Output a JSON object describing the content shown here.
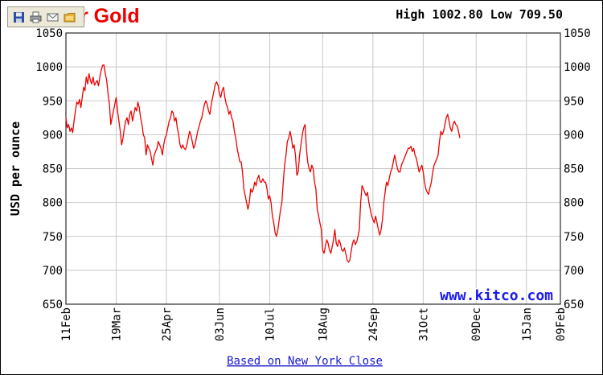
{
  "chart_data": {
    "type": "line",
    "title_visible": "r Gold",
    "high_low_text": "High 1002.80 Low 709.50",
    "ylabel": "USD per ounce",
    "footer": "Based on New York Close",
    "watermark": "www.kitco.com",
    "ylim": [
      650,
      1050
    ],
    "yticks": [
      650,
      700,
      750,
      800,
      850,
      900,
      950,
      1000,
      1050
    ],
    "x_tick_labels": [
      "11Feb",
      "19Mar",
      "25Apr",
      "03Jun",
      "10Jul",
      "18Aug",
      "24Sep",
      "31Oct",
      "09Dec",
      "15Jan",
      "09Feb"
    ],
    "x_tick_days": [
      0,
      37,
      74,
      113,
      150,
      189,
      226,
      263,
      302,
      339,
      364
    ],
    "x_range_days": [
      0,
      364
    ],
    "grid": true,
    "series": [
      {
        "color": "#ee0000",
        "points": [
          [
            0,
            925
          ],
          [
            1,
            910
          ],
          [
            2,
            915
          ],
          [
            3,
            905
          ],
          [
            4,
            910
          ],
          [
            5,
            903
          ],
          [
            6,
            920
          ],
          [
            7,
            935
          ],
          [
            8,
            948
          ],
          [
            9,
            945
          ],
          [
            10,
            952
          ],
          [
            11,
            940
          ],
          [
            12,
            955
          ],
          [
            13,
            970
          ],
          [
            14,
            965
          ],
          [
            15,
            985
          ],
          [
            16,
            975
          ],
          [
            17,
            990
          ],
          [
            18,
            980
          ],
          [
            19,
            975
          ],
          [
            20,
            985
          ],
          [
            21,
            973
          ],
          [
            22,
            977
          ],
          [
            23,
            980
          ],
          [
            24,
            972
          ],
          [
            25,
            985
          ],
          [
            26,
            995
          ],
          [
            27,
            1002
          ],
          [
            28,
            1003
          ],
          [
            29,
            990
          ],
          [
            30,
            980
          ],
          [
            31,
            960
          ],
          [
            32,
            945
          ],
          [
            33,
            915
          ],
          [
            34,
            925
          ],
          [
            35,
            935
          ],
          [
            36,
            945
          ],
          [
            37,
            955
          ],
          [
            38,
            935
          ],
          [
            39,
            920
          ],
          [
            40,
            905
          ],
          [
            41,
            885
          ],
          [
            42,
            895
          ],
          [
            43,
            910
          ],
          [
            44,
            920
          ],
          [
            45,
            925
          ],
          [
            46,
            915
          ],
          [
            47,
            930
          ],
          [
            48,
            935
          ],
          [
            49,
            920
          ],
          [
            50,
            930
          ],
          [
            51,
            940
          ],
          [
            52,
            935
          ],
          [
            53,
            948
          ],
          [
            54,
            940
          ],
          [
            55,
            925
          ],
          [
            56,
            915
          ],
          [
            57,
            900
          ],
          [
            58,
            895
          ],
          [
            59,
            870
          ],
          [
            60,
            885
          ],
          [
            61,
            880
          ],
          [
            62,
            875
          ],
          [
            63,
            865
          ],
          [
            64,
            855
          ],
          [
            65,
            870
          ],
          [
            66,
            875
          ],
          [
            67,
            880
          ],
          [
            68,
            890
          ],
          [
            69,
            885
          ],
          [
            70,
            880
          ],
          [
            71,
            870
          ],
          [
            72,
            885
          ],
          [
            73,
            895
          ],
          [
            74,
            900
          ],
          [
            75,
            910
          ],
          [
            76,
            920
          ],
          [
            77,
            925
          ],
          [
            78,
            935
          ],
          [
            79,
            932
          ],
          [
            80,
            920
          ],
          [
            81,
            925
          ],
          [
            82,
            910
          ],
          [
            83,
            900
          ],
          [
            84,
            885
          ],
          [
            85,
            880
          ],
          [
            86,
            885
          ],
          [
            87,
            880
          ],
          [
            88,
            878
          ],
          [
            89,
            885
          ],
          [
            90,
            895
          ],
          [
            91,
            905
          ],
          [
            92,
            900
          ],
          [
            93,
            890
          ],
          [
            94,
            880
          ],
          [
            95,
            885
          ],
          [
            96,
            895
          ],
          [
            97,
            905
          ],
          [
            98,
            912
          ],
          [
            99,
            920
          ],
          [
            100,
            925
          ],
          [
            101,
            935
          ],
          [
            102,
            945
          ],
          [
            103,
            950
          ],
          [
            104,
            945
          ],
          [
            105,
            935
          ],
          [
            106,
            930
          ],
          [
            107,
            945
          ],
          [
            108,
            955
          ],
          [
            109,
            965
          ],
          [
            110,
            975
          ],
          [
            111,
            978
          ],
          [
            112,
            973
          ],
          [
            113,
            960
          ],
          [
            114,
            955
          ],
          [
            115,
            965
          ],
          [
            116,
            970
          ],
          [
            117,
            955
          ],
          [
            118,
            945
          ],
          [
            119,
            940
          ],
          [
            120,
            930
          ],
          [
            121,
            935
          ],
          [
            122,
            925
          ],
          [
            123,
            920
          ],
          [
            124,
            905
          ],
          [
            125,
            895
          ],
          [
            126,
            880
          ],
          [
            127,
            870
          ],
          [
            128,
            860
          ],
          [
            129,
            860
          ],
          [
            130,
            845
          ],
          [
            131,
            820
          ],
          [
            132,
            810
          ],
          [
            133,
            800
          ],
          [
            134,
            790
          ],
          [
            135,
            800
          ],
          [
            136,
            820
          ],
          [
            137,
            815
          ],
          [
            138,
            820
          ],
          [
            139,
            830
          ],
          [
            140,
            825
          ],
          [
            141,
            835
          ],
          [
            142,
            840
          ],
          [
            143,
            830
          ],
          [
            144,
            830
          ],
          [
            145,
            835
          ],
          [
            146,
            830
          ],
          [
            147,
            830
          ],
          [
            148,
            820
          ],
          [
            149,
            805
          ],
          [
            150,
            810
          ],
          [
            151,
            800
          ],
          [
            152,
            780
          ],
          [
            153,
            770
          ],
          [
            154,
            755
          ],
          [
            155,
            750
          ],
          [
            156,
            760
          ],
          [
            157,
            775
          ],
          [
            158,
            790
          ],
          [
            159,
            800
          ],
          [
            160,
            830
          ],
          [
            161,
            855
          ],
          [
            162,
            870
          ],
          [
            163,
            890
          ],
          [
            164,
            895
          ],
          [
            165,
            905
          ],
          [
            166,
            895
          ],
          [
            167,
            880
          ],
          [
            168,
            885
          ],
          [
            169,
            870
          ],
          [
            170,
            840
          ],
          [
            171,
            845
          ],
          [
            172,
            870
          ],
          [
            173,
            885
          ],
          [
            174,
            900
          ],
          [
            175,
            910
          ],
          [
            176,
            915
          ],
          [
            177,
            880
          ],
          [
            178,
            860
          ],
          [
            179,
            850
          ],
          [
            180,
            845
          ],
          [
            181,
            855
          ],
          [
            182,
            850
          ],
          [
            183,
            830
          ],
          [
            184,
            820
          ],
          [
            185,
            790
          ],
          [
            186,
            780
          ],
          [
            187,
            770
          ],
          [
            188,
            760
          ],
          [
            189,
            730
          ],
          [
            190,
            725
          ],
          [
            191,
            735
          ],
          [
            192,
            745
          ],
          [
            193,
            740
          ],
          [
            194,
            730
          ],
          [
            195,
            725
          ],
          [
            196,
            735
          ],
          [
            197,
            745
          ],
          [
            198,
            760
          ],
          [
            199,
            740
          ],
          [
            200,
            735
          ],
          [
            201,
            745
          ],
          [
            202,
            740
          ],
          [
            203,
            730
          ],
          [
            204,
            728
          ],
          [
            205,
            733
          ],
          [
            206,
            725
          ],
          [
            207,
            715
          ],
          [
            208,
            712
          ],
          [
            209,
            715
          ],
          [
            210,
            728
          ],
          [
            211,
            740
          ],
          [
            212,
            745
          ],
          [
            213,
            738
          ],
          [
            214,
            742
          ],
          [
            215,
            750
          ],
          [
            216,
            760
          ],
          [
            217,
            800
          ],
          [
            218,
            825
          ],
          [
            219,
            820
          ],
          [
            220,
            815
          ],
          [
            221,
            810
          ],
          [
            222,
            815
          ],
          [
            223,
            800
          ],
          [
            224,
            790
          ],
          [
            225,
            780
          ],
          [
            226,
            775
          ],
          [
            227,
            770
          ],
          [
            228,
            780
          ],
          [
            229,
            770
          ],
          [
            230,
            760
          ],
          [
            231,
            752
          ],
          [
            232,
            760
          ],
          [
            233,
            775
          ],
          [
            234,
            800
          ],
          [
            235,
            815
          ],
          [
            236,
            830
          ],
          [
            237,
            825
          ],
          [
            238,
            835
          ],
          [
            239,
            845
          ],
          [
            240,
            850
          ],
          [
            241,
            860
          ],
          [
            242,
            870
          ],
          [
            243,
            860
          ],
          [
            244,
            850
          ],
          [
            245,
            845
          ],
          [
            246,
            845
          ],
          [
            247,
            855
          ],
          [
            248,
            860
          ],
          [
            249,
            865
          ],
          [
            250,
            870
          ],
          [
            251,
            875
          ],
          [
            252,
            880
          ],
          [
            253,
            880
          ],
          [
            254,
            883
          ],
          [
            255,
            875
          ],
          [
            256,
            880
          ],
          [
            257,
            870
          ],
          [
            258,
            865
          ],
          [
            259,
            855
          ],
          [
            260,
            845
          ],
          [
            261,
            850
          ],
          [
            262,
            855
          ],
          [
            263,
            845
          ],
          [
            264,
            830
          ],
          [
            265,
            820
          ],
          [
            266,
            815
          ],
          [
            267,
            812
          ],
          [
            268,
            822
          ],
          [
            269,
            830
          ],
          [
            270,
            845
          ],
          [
            271,
            855
          ],
          [
            272,
            860
          ],
          [
            273,
            865
          ],
          [
            274,
            870
          ],
          [
            275,
            890
          ],
          [
            276,
            905
          ],
          [
            277,
            900
          ],
          [
            278,
            905
          ],
          [
            279,
            915
          ],
          [
            280,
            925
          ],
          [
            281,
            930
          ],
          [
            282,
            920
          ],
          [
            283,
            910
          ],
          [
            284,
            905
          ],
          [
            285,
            915
          ],
          [
            286,
            920
          ],
          [
            287,
            915
          ],
          [
            288,
            913
          ],
          [
            289,
            905
          ],
          [
            290,
            895
          ]
        ]
      }
    ]
  },
  "toolbar": {
    "icons": [
      "save-icon",
      "print-icon",
      "email-icon",
      "folder-icon"
    ]
  }
}
